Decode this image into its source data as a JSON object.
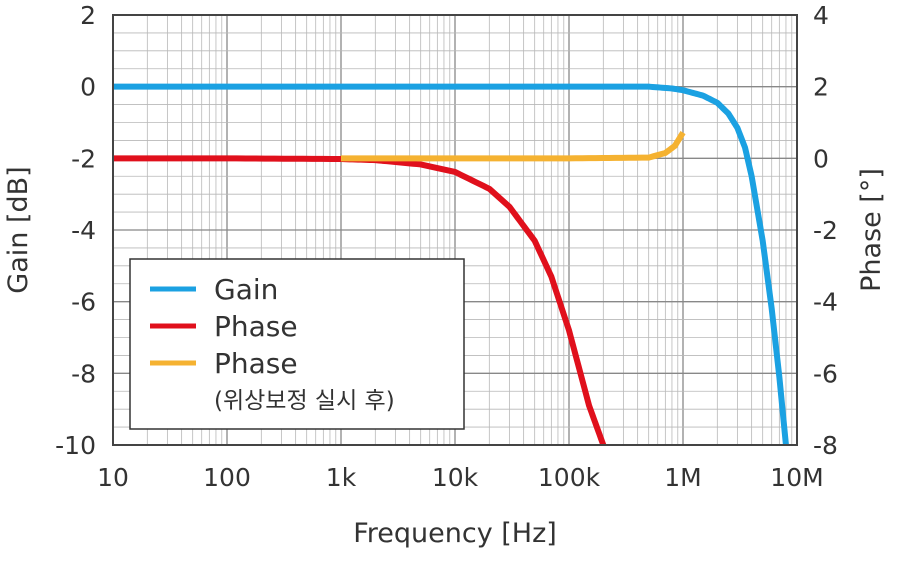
{
  "chart_data": {
    "type": "line",
    "xlabel": "Frequency [Hz]",
    "ylabel_left": "Gain [dB]",
    "ylabel_right": "Phase [°]",
    "x_scale": "log",
    "xlim": [
      10,
      10000000
    ],
    "ylim_left": [
      -10,
      2
    ],
    "ylim_right": [
      -8,
      4
    ],
    "x_ticks": [
      {
        "value": 10,
        "label": "10"
      },
      {
        "value": 100,
        "label": "100"
      },
      {
        "value": 1000,
        "label": "1k"
      },
      {
        "value": 10000,
        "label": "10k"
      },
      {
        "value": 100000,
        "label": "100k"
      },
      {
        "value": 1000000,
        "label": "1M"
      },
      {
        "value": 10000000,
        "label": "10M"
      }
    ],
    "y_ticks_left": [
      {
        "value": 2,
        "label": "2"
      },
      {
        "value": 0,
        "label": "0"
      },
      {
        "value": -2,
        "label": "-2"
      },
      {
        "value": -4,
        "label": "-4"
      },
      {
        "value": -6,
        "label": "-6"
      },
      {
        "value": -8,
        "label": "-8"
      },
      {
        "value": -10,
        "label": "-10"
      }
    ],
    "y_ticks_right": [
      {
        "value": 4,
        "label": "4"
      },
      {
        "value": 2,
        "label": "2"
      },
      {
        "value": 0,
        "label": "0"
      },
      {
        "value": -2,
        "label": "-2"
      },
      {
        "value": -4,
        "label": "-4"
      },
      {
        "value": -6,
        "label": "-6"
      },
      {
        "value": -8,
        "label": "-8"
      }
    ],
    "grid": true,
    "legend_position": "lower-left",
    "series": [
      {
        "name": "Gain",
        "axis": "left",
        "color": "#1ba1e2",
        "x": [
          10,
          100,
          1000,
          10000,
          100000,
          500000,
          800000,
          1000000,
          1500000,
          2000000,
          2500000,
          3000000,
          3500000,
          4000000,
          5000000,
          6000000,
          7000000,
          8000000
        ],
        "y": [
          0,
          0,
          0,
          0,
          0,
          0,
          -0.05,
          -0.1,
          -0.25,
          -0.45,
          -0.75,
          -1.15,
          -1.7,
          -2.5,
          -4.3,
          -6.2,
          -8.1,
          -10
        ]
      },
      {
        "name": "Phase",
        "axis": "right",
        "color": "#e0101c",
        "x": [
          10,
          100,
          1000,
          2000,
          5000,
          10000,
          20000,
          30000,
          50000,
          70000,
          100000,
          150000,
          200000
        ],
        "y": [
          0,
          0,
          -0.02,
          -0.05,
          -0.17,
          -0.38,
          -0.85,
          -1.35,
          -2.3,
          -3.3,
          -4.8,
          -6.9,
          -8
        ]
      },
      {
        "name": "Phase",
        "name_sub": "(위상보정 실시 후)",
        "axis": "right",
        "color": "#f5b231",
        "x": [
          1000,
          10000,
          100000,
          500000,
          700000,
          850000,
          1000000
        ],
        "y": [
          0,
          0,
          0,
          0.02,
          0.15,
          0.35,
          0.72
        ]
      }
    ]
  }
}
